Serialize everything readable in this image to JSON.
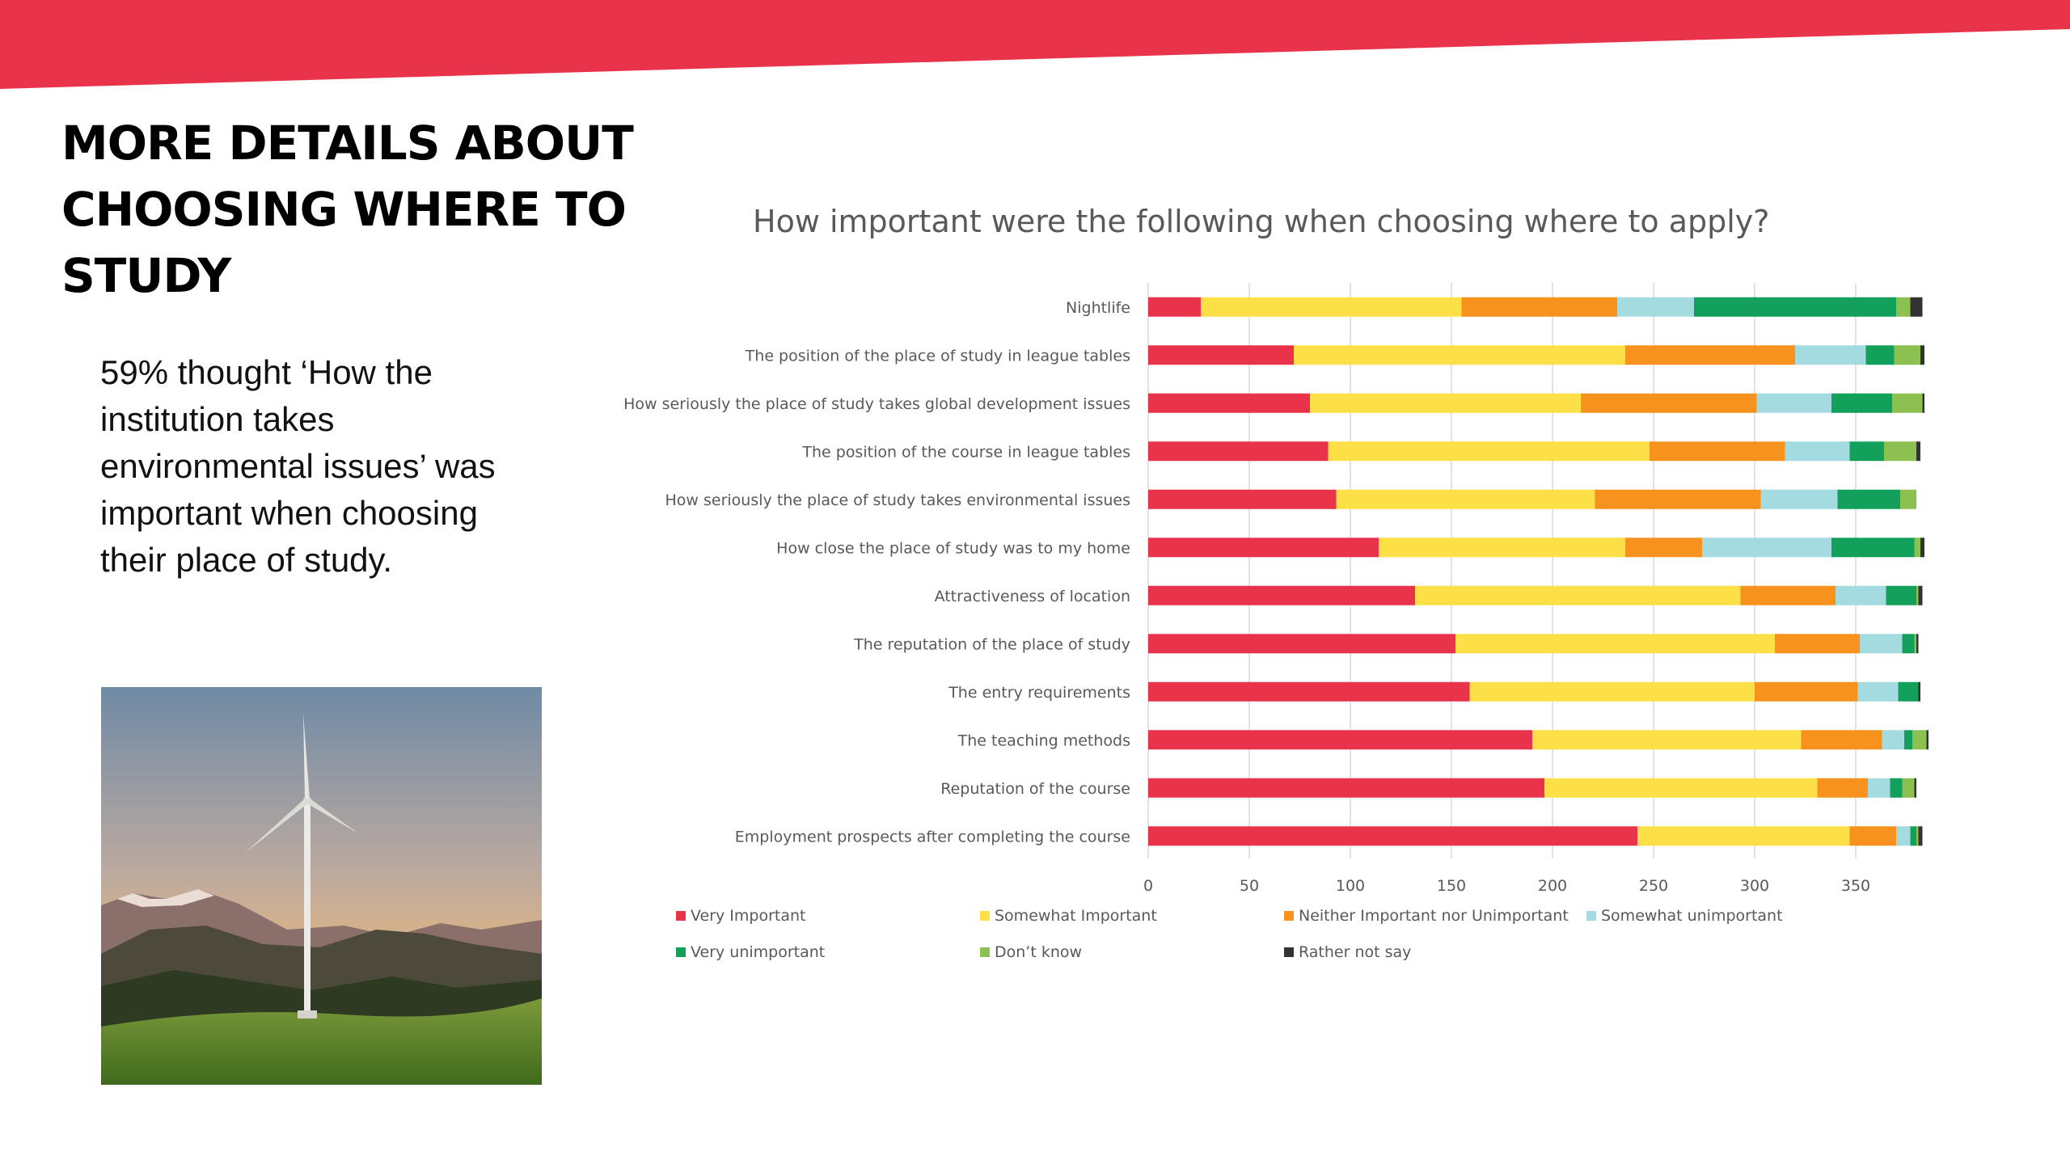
{
  "slide": {
    "title": "MORE DETAILS ABOUT CHOOSING WHERE TO STUDY",
    "body": "59% thought ‘How the institution takes environmental issues’ was important when choosing their place of study.",
    "accent_color": "#e8334a"
  },
  "photo": {
    "subject": "wind-turbine-photo"
  },
  "chart_data": {
    "type": "bar",
    "orientation": "horizontal",
    "stacked": true,
    "title": "How important were the following when choosing where to apply?",
    "xlim": [
      0,
      380
    ],
    "xticks": [
      0,
      50,
      100,
      150,
      200,
      250,
      300,
      350
    ],
    "grid": true,
    "legend_position": "bottom",
    "categories": [
      "Nightlife",
      "The position of the place of study in league tables",
      "How seriously the place of study takes global development issues",
      "The position of the course in league tables",
      "How seriously the place of study takes environmental issues",
      "How close the place of study was to my home",
      "Attractiveness of location",
      "The reputation of the place of study",
      "The entry requirements",
      "The teaching methods",
      "Reputation of the course",
      "Employment prospects after completing the course"
    ],
    "series": [
      {
        "name": "Very Important",
        "color": "#e8334a",
        "values": [
          26,
          72,
          80,
          89,
          93,
          114,
          132,
          152,
          159,
          190,
          196,
          242
        ]
      },
      {
        "name": "Somewhat Important",
        "color": "#fde047",
        "values": [
          129,
          164,
          134,
          159,
          128,
          122,
          161,
          158,
          141,
          133,
          135,
          105
        ]
      },
      {
        "name": "Neither Important nor Unimportant",
        "color": "#f7921e",
        "values": [
          77,
          84,
          87,
          67,
          82,
          38,
          47,
          42,
          51,
          40,
          25,
          23
        ]
      },
      {
        "name": "Somewhat unimportant",
        "color": "#a4dbe0",
        "values": [
          38,
          35,
          37,
          32,
          38,
          64,
          25,
          21,
          20,
          11,
          11,
          7
        ]
      },
      {
        "name": "Very unimportant",
        "color": "#12a05b",
        "values": [
          100,
          14,
          30,
          17,
          31,
          41,
          15,
          6,
          10,
          4,
          6,
          3
        ]
      },
      {
        "name": "Don’t know",
        "color": "#8cc152",
        "values": [
          7,
          13,
          15,
          16,
          8,
          3,
          1,
          1,
          0,
          7,
          6,
          1
        ]
      },
      {
        "name": "Rather not say",
        "color": "#333333",
        "values": [
          6,
          2,
          1,
          2,
          0,
          2,
          2,
          1,
          1,
          1,
          1,
          2
        ]
      }
    ]
  }
}
